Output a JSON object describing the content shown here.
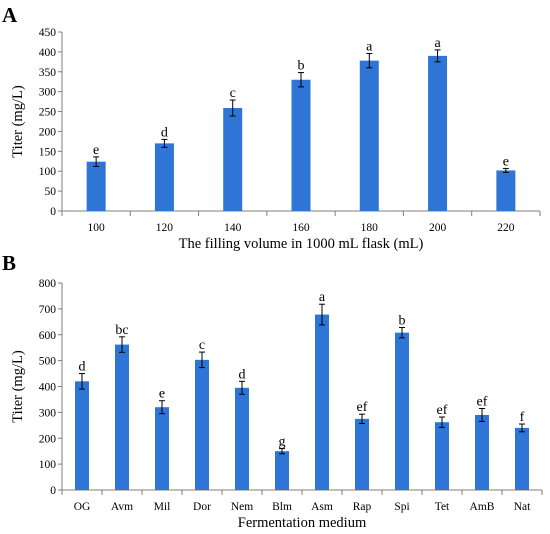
{
  "chart_data": [
    {
      "panel": "A",
      "type": "bar",
      "xlabel": "The filling volume in 1000 mL flask (mL)",
      "ylabel": "Titer (mg/L)",
      "ylim": [
        0,
        450
      ],
      "yticks": [
        0,
        50,
        100,
        150,
        200,
        250,
        300,
        350,
        400,
        450
      ],
      "categories": [
        "100",
        "120",
        "140",
        "160",
        "180",
        "200",
        "220"
      ],
      "values": [
        124,
        170,
        259,
        330,
        378,
        390,
        102
      ],
      "errors": [
        12,
        10,
        20,
        18,
        18,
        15,
        5
      ],
      "labels": [
        "e",
        "d",
        "c",
        "b",
        "a",
        "a",
        "e"
      ],
      "color": "#2e75d6",
      "grid": false,
      "legend": "none"
    },
    {
      "panel": "B",
      "type": "bar",
      "xlabel": "Fermentation medium",
      "ylabel": "Titer (mg/L)",
      "ylim": [
        0,
        800
      ],
      "yticks": [
        0,
        100,
        200,
        300,
        400,
        500,
        600,
        700,
        800
      ],
      "categories": [
        "OG",
        "Avm",
        "Mil",
        "Dor",
        "Nem",
        "Blm",
        "Asm",
        "Rap",
        "Spi",
        "Tet",
        "AmB",
        "Nat"
      ],
      "values": [
        420,
        562,
        320,
        503,
        395,
        150,
        678,
        275,
        608,
        262,
        290,
        240
      ],
      "errors": [
        30,
        30,
        25,
        30,
        25,
        10,
        40,
        18,
        20,
        20,
        25,
        15
      ],
      "labels": [
        "d",
        "bc",
        "e",
        "c",
        "d",
        "g",
        "a",
        "ef",
        "b",
        "ef",
        "ef",
        "f"
      ],
      "color": "#2e75d6",
      "grid": false,
      "legend": "none"
    }
  ]
}
